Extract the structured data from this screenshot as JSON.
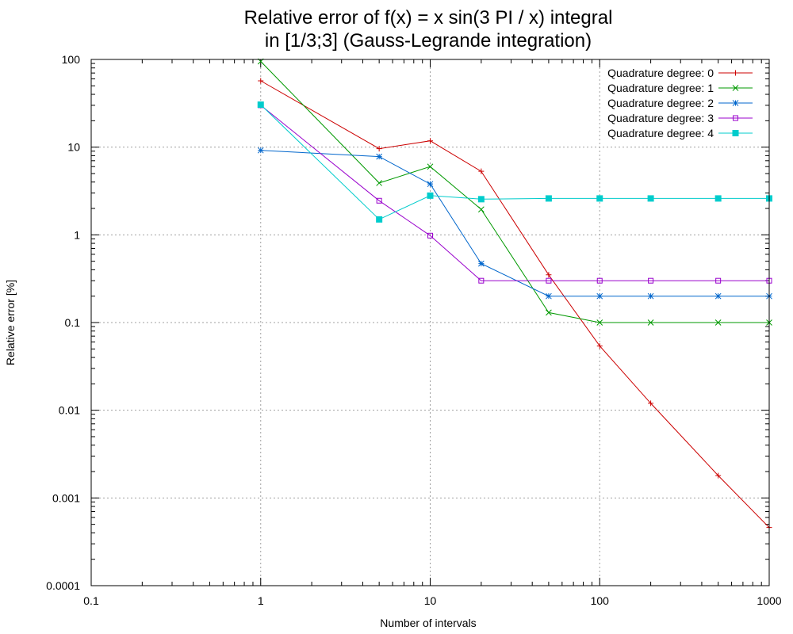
{
  "chart_data": {
    "type": "line",
    "title_line1": "Relative error of f(x) = x sin(3 PI / x) integral",
    "title_line2": "in [1/3;3] (Gauss-Legrande integration)",
    "xlabel": "Number of intervals",
    "ylabel": "Relative error [%]",
    "xscale": "log",
    "yscale": "log",
    "xlim": [
      0.1,
      1000
    ],
    "ylim": [
      0.0001,
      100
    ],
    "grid": true,
    "legend_position": "top-right",
    "x_ticks": [
      0.1,
      1,
      10,
      100,
      1000
    ],
    "x_tick_labels": [
      "0.1",
      "1",
      "10",
      "100",
      "1000"
    ],
    "y_ticks": [
      0.0001,
      0.001,
      0.01,
      0.1,
      1,
      10,
      100
    ],
    "y_tick_labels": [
      "0.0001",
      "0.001",
      "0.01",
      "0.1",
      "1",
      "10",
      "100"
    ],
    "x": [
      1,
      5,
      10,
      20,
      50,
      100,
      200,
      500,
      1000
    ],
    "series": [
      {
        "name": "Quadrature degree: 0",
        "label": "Quadrature degree: 0",
        "color": "#cc0000",
        "marker": "plus",
        "values": [
          57,
          9.6,
          11.8,
          5.3,
          0.35,
          0.054,
          0.012,
          0.0018,
          0.00046
        ]
      },
      {
        "name": "Quadrature degree: 1",
        "label": "Quadrature degree: 1",
        "color": "#009900",
        "marker": "cross",
        "values": [
          95,
          3.9,
          6.0,
          1.95,
          0.13,
          0.1,
          0.1,
          0.1,
          0.1
        ]
      },
      {
        "name": "Quadrature degree: 2",
        "label": "Quadrature degree: 2",
        "color": "#0066cc",
        "marker": "star",
        "values": [
          9.2,
          7.8,
          3.8,
          0.47,
          0.2,
          0.2,
          0.2,
          0.2,
          0.2
        ]
      },
      {
        "name": "Quadrature degree: 3",
        "label": "Quadrature degree: 3",
        "color": "#9900cc",
        "marker": "open-square",
        "values": [
          30,
          2.45,
          0.98,
          0.3,
          0.3,
          0.3,
          0.3,
          0.3,
          0.3
        ]
      },
      {
        "name": "Quadrature degree: 4",
        "label": "Quadrature degree: 4",
        "color": "#00cccc",
        "marker": "filled-square",
        "values": [
          30.5,
          1.5,
          2.8,
          2.55,
          2.6,
          2.6,
          2.6,
          2.6,
          2.6
        ]
      }
    ]
  }
}
